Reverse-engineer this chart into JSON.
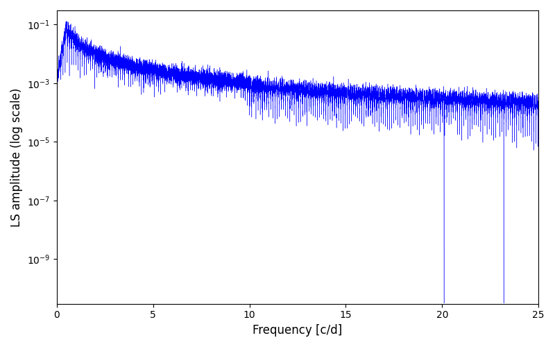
{
  "xlabel": "Frequency [c/d]",
  "ylabel": "LS amplitude (log scale)",
  "xlim": [
    0,
    25
  ],
  "ylim": [
    3e-11,
    0.3
  ],
  "line_color": "blue",
  "line_width": 0.3,
  "figsize": [
    8.0,
    5.0
  ],
  "dpi": 100,
  "freq_max": 25.0,
  "n_points": 15000,
  "seed": 77
}
